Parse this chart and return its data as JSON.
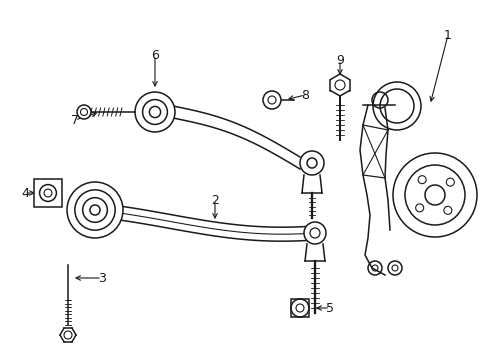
{
  "background_color": "#ffffff",
  "line_color": "#1a1a1a",
  "line_width": 1.1,
  "figsize": [
    4.9,
    3.6
  ],
  "dpi": 100,
  "xlim": [
    0,
    490
  ],
  "ylim": [
    0,
    360
  ]
}
